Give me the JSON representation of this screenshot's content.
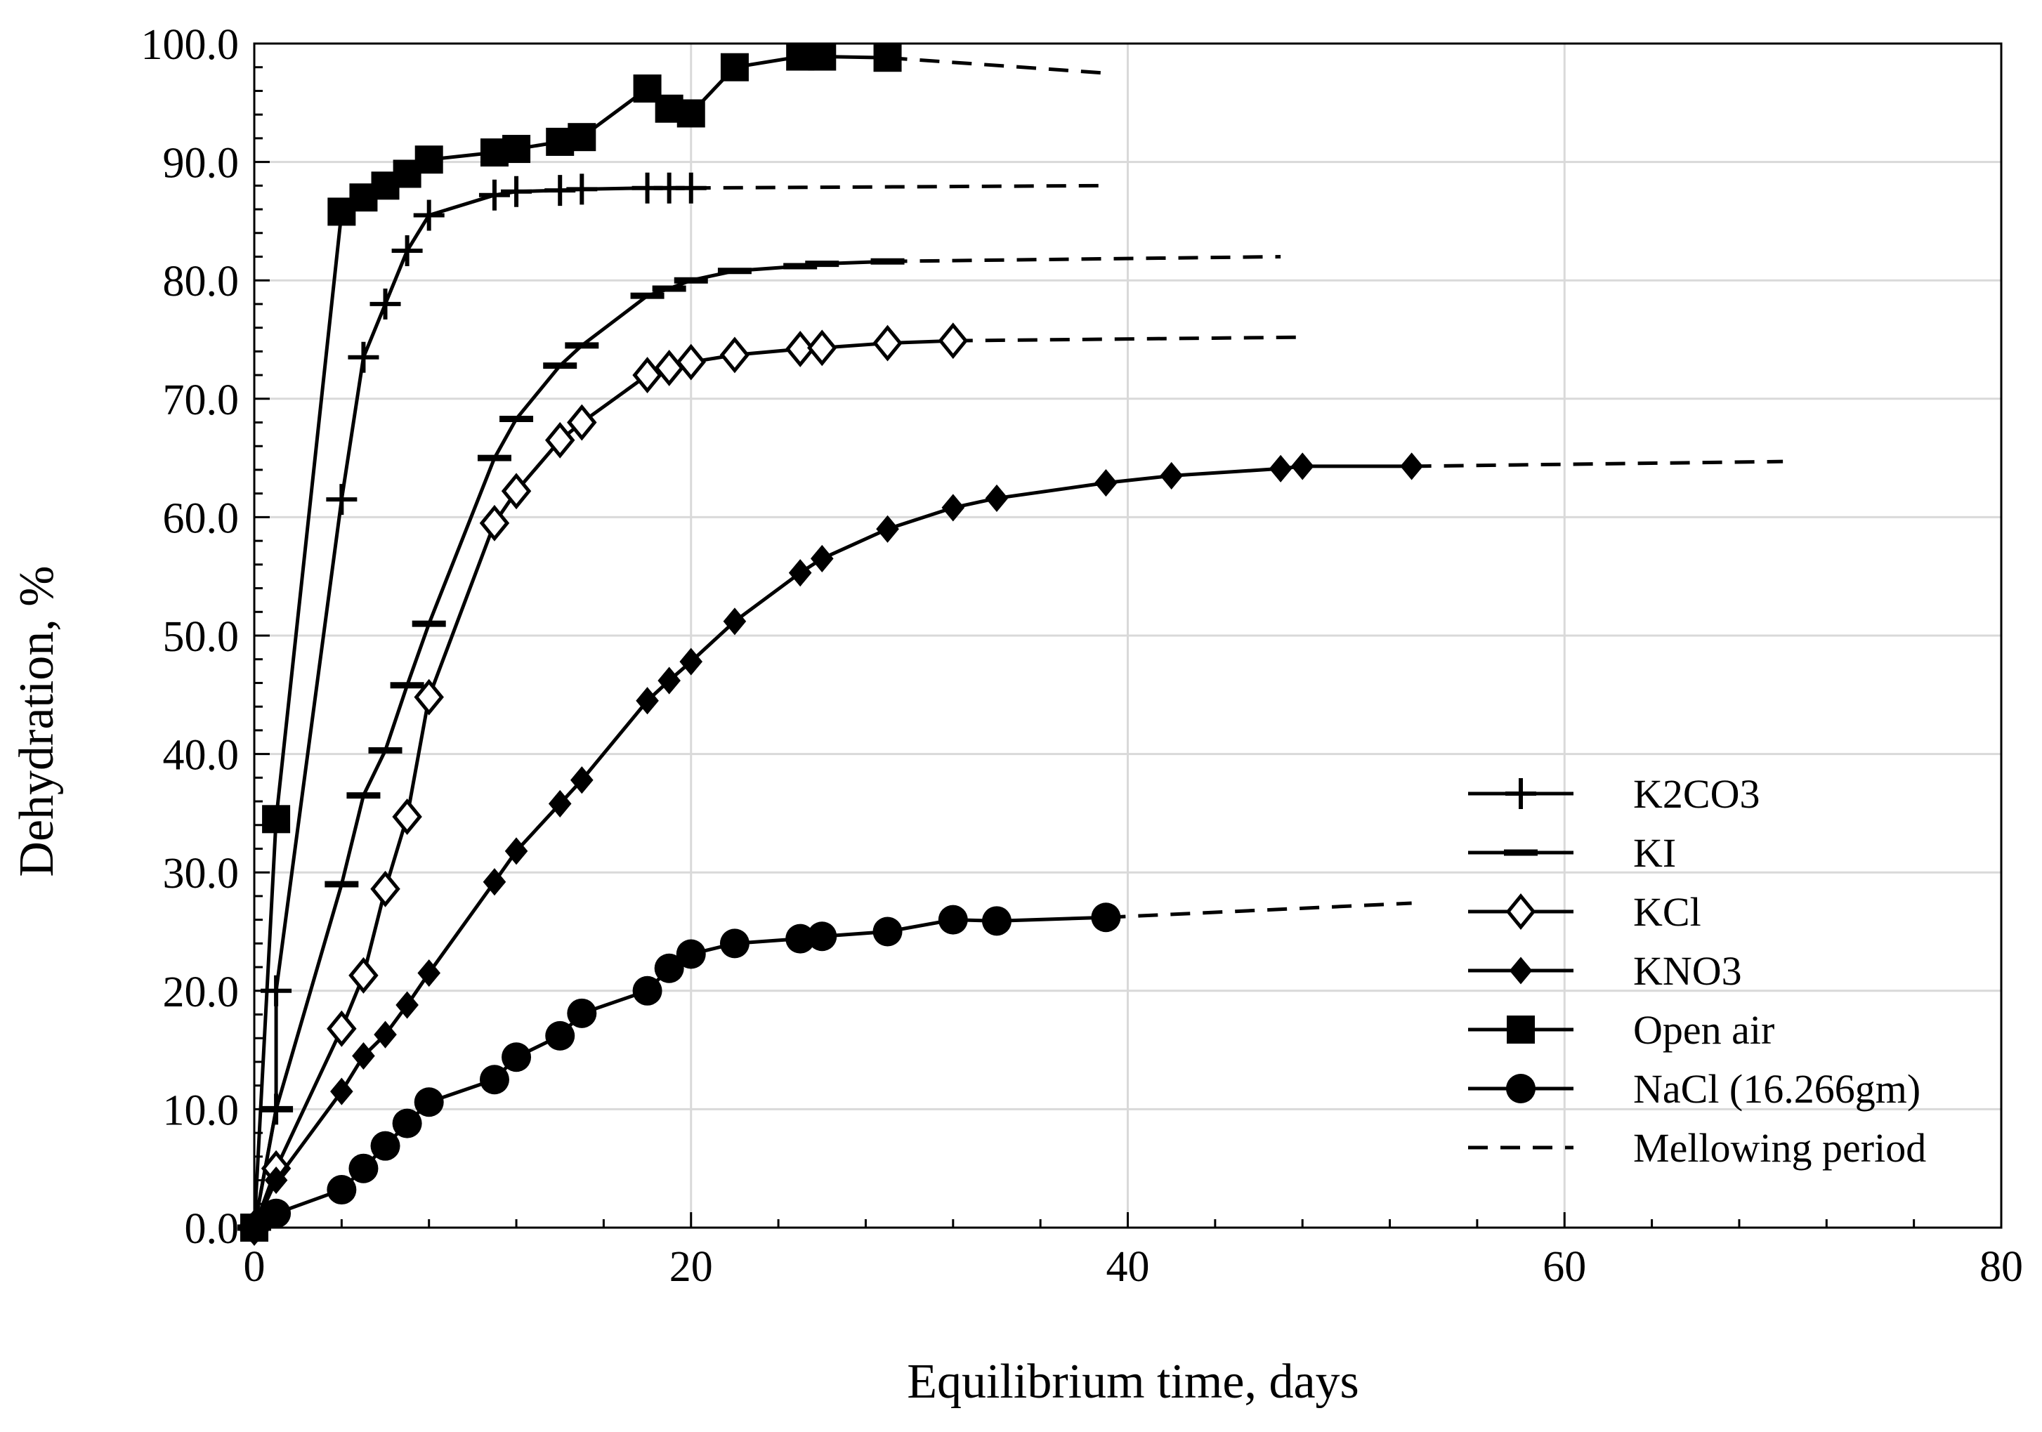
{
  "chart_data": {
    "type": "line",
    "title": "",
    "xlabel": "Equilibrium time, days",
    "ylabel": "Dehydration, %",
    "xlim": [
      0,
      80
    ],
    "ylim": [
      0,
      100
    ],
    "grid": true,
    "legend_position": "bottom-right",
    "x_ticks": [
      {
        "value": 0,
        "label": "0"
      },
      {
        "value": 20,
        "label": "20"
      },
      {
        "value": 40,
        "label": "40"
      },
      {
        "value": 60,
        "label": "60"
      },
      {
        "value": 80,
        "label": "80"
      }
    ],
    "y_ticks": [
      {
        "value": 0,
        "label": "0.0"
      },
      {
        "value": 10,
        "label": "10.0"
      },
      {
        "value": 20,
        "label": "20.0"
      },
      {
        "value": 30,
        "label": "30.0"
      },
      {
        "value": 40,
        "label": "40.0"
      },
      {
        "value": 50,
        "label": "50.0"
      },
      {
        "value": 60,
        "label": "60.0"
      },
      {
        "value": 70,
        "label": "70.0"
      },
      {
        "value": 80,
        "label": "80.0"
      },
      {
        "value": 90,
        "label": "90.0"
      },
      {
        "value": 100,
        "label": "100.0"
      }
    ],
    "series": [
      {
        "name": "K2CO3",
        "marker": "plus",
        "x": [
          0,
          1,
          1,
          4,
          5,
          6,
          7,
          8,
          11,
          12,
          14,
          15,
          18,
          19,
          20
        ],
        "y": [
          0,
          10,
          20,
          61.5,
          73.5,
          78,
          82.5,
          85.5,
          87.2,
          87.5,
          87.6,
          87.7,
          87.8,
          87.8,
          87.8
        ],
        "mellowing": {
          "x": [
            20,
            39
          ],
          "y": [
            87.8,
            88
          ]
        }
      },
      {
        "name": "KI",
        "marker": "dash",
        "x": [
          0,
          1,
          4,
          5,
          6,
          7,
          8,
          11,
          12,
          14,
          15,
          18,
          19,
          20,
          22,
          25,
          26,
          29
        ],
        "y": [
          0,
          10,
          29,
          36.5,
          40.3,
          45.8,
          51,
          65,
          68.3,
          72.8,
          74.5,
          78.7,
          79.3,
          80,
          80.8,
          81.2,
          81.4,
          81.6
        ],
        "mellowing": {
          "x": [
            29,
            47
          ],
          "y": [
            81.6,
            82
          ]
        }
      },
      {
        "name": "KCl",
        "marker": "diamond-open",
        "x": [
          0,
          1,
          4,
          5,
          6,
          7,
          8,
          11,
          12,
          14,
          15,
          18,
          19,
          20,
          22,
          25,
          26,
          29,
          32
        ],
        "y": [
          0,
          5,
          16.8,
          21.3,
          28.6,
          34.7,
          44.8,
          59.5,
          62.2,
          66.5,
          68,
          72,
          72.6,
          73.1,
          73.7,
          74.2,
          74.3,
          74.7,
          74.9
        ],
        "mellowing": {
          "x": [
            32,
            48
          ],
          "y": [
            74.9,
            75.2
          ]
        }
      },
      {
        "name": "KNO3",
        "marker": "diamond-filled",
        "x": [
          0,
          1,
          4,
          5,
          6,
          7,
          8,
          11,
          12,
          14,
          15,
          18,
          19,
          20,
          22,
          25,
          26,
          29,
          32,
          34,
          39,
          42,
          47,
          48,
          53
        ],
        "y": [
          0,
          4,
          11.5,
          14.5,
          16.3,
          18.8,
          21.5,
          29.2,
          31.8,
          35.8,
          37.8,
          44.5,
          46.2,
          47.8,
          51.2,
          55.3,
          56.5,
          59,
          60.8,
          61.6,
          62.9,
          63.5,
          64.1,
          64.3,
          64.3
        ],
        "mellowing": {
          "x": [
            53,
            70
          ],
          "y": [
            64.3,
            64.7
          ]
        }
      },
      {
        "name": "Open air",
        "marker": "square",
        "x": [
          0,
          1,
          4,
          5,
          6,
          7,
          8,
          11,
          12,
          14,
          15,
          18,
          19,
          20,
          22,
          25,
          26,
          29
        ],
        "y": [
          0,
          34.5,
          85.8,
          87,
          88,
          89,
          90.2,
          90.8,
          91.1,
          91.7,
          92.1,
          96.2,
          94.5,
          94.1,
          98,
          98.9,
          98.9,
          98.8
        ],
        "mellowing": {
          "x": [
            29,
            39
          ],
          "y": [
            98.8,
            97.5
          ]
        }
      },
      {
        "name": "NaCl (16.266gm)",
        "marker": "circle",
        "x": [
          0,
          1,
          4,
          5,
          6,
          7,
          8,
          11,
          12,
          14,
          15,
          18,
          19,
          20,
          22,
          25,
          26,
          29,
          32,
          34,
          39
        ],
        "y": [
          0,
          1.2,
          3.2,
          5,
          6.9,
          8.8,
          10.6,
          12.5,
          14.4,
          16.2,
          18.1,
          20,
          21.9,
          23.1,
          24,
          24.4,
          24.6,
          25,
          26,
          25.9,
          26.2
        ],
        "mellowing": {
          "x": [
            39,
            53
          ],
          "y": [
            26.2,
            27.4
          ]
        }
      }
    ],
    "legend": [
      {
        "label": "K2CO3",
        "marker": "plus",
        "style": "solid"
      },
      {
        "label": "KI",
        "marker": "dash",
        "style": "solid"
      },
      {
        "label": "KCl",
        "marker": "diamond-open",
        "style": "solid"
      },
      {
        "label": "KNO3",
        "marker": "diamond-filled",
        "style": "solid"
      },
      {
        "label": "Open air",
        "marker": "square",
        "style": "solid"
      },
      {
        "label": "NaCl (16.266gm)",
        "marker": "circle",
        "style": "solid"
      },
      {
        "label": "Mellowing period",
        "marker": "none",
        "style": "dashed"
      }
    ],
    "colors": {
      "line": "#000000",
      "grid": "#d9d9d9",
      "background": "#ffffff"
    }
  }
}
